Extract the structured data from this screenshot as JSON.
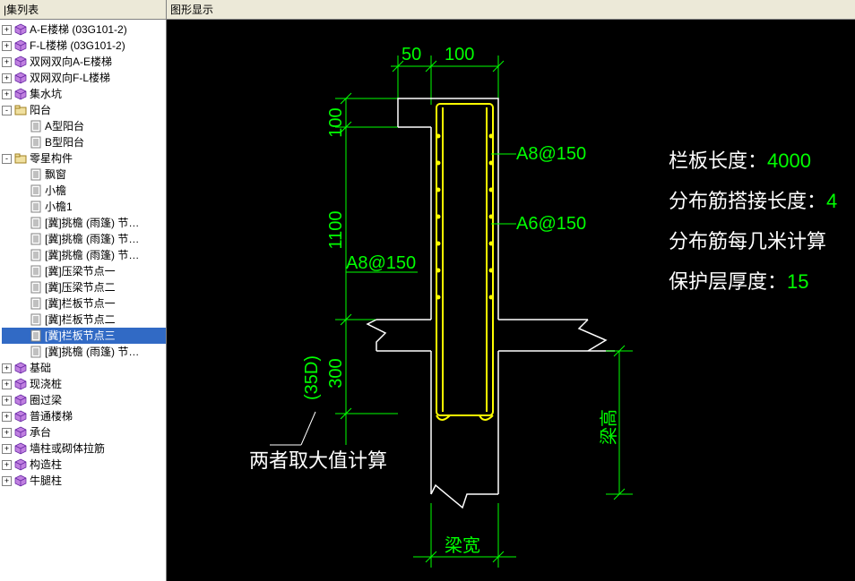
{
  "sidebar": {
    "title": "|集列表",
    "items": [
      {
        "level": 0,
        "exp": "+",
        "icon": "cube",
        "label": "A-E楼梯 (03G101-2)"
      },
      {
        "level": 0,
        "exp": "+",
        "icon": "cube",
        "label": "F-L楼梯 (03G101-2)"
      },
      {
        "level": 0,
        "exp": "+",
        "icon": "cube",
        "label": "双网双向A-E楼梯"
      },
      {
        "level": 0,
        "exp": "+",
        "icon": "cube",
        "label": "双网双向F-L楼梯"
      },
      {
        "level": 0,
        "exp": "+",
        "icon": "cube",
        "label": "集水坑"
      },
      {
        "level": 0,
        "exp": "-",
        "icon": "folder",
        "label": "阳台"
      },
      {
        "level": 1,
        "exp": " ",
        "icon": "doc",
        "label": "A型阳台"
      },
      {
        "level": 1,
        "exp": " ",
        "icon": "doc",
        "label": "B型阳台"
      },
      {
        "level": 0,
        "exp": "-",
        "icon": "folder",
        "label": "零星构件"
      },
      {
        "level": 1,
        "exp": " ",
        "icon": "doc",
        "label": "飘窗"
      },
      {
        "level": 1,
        "exp": " ",
        "icon": "doc",
        "label": "小檐"
      },
      {
        "level": 1,
        "exp": " ",
        "icon": "doc",
        "label": "小檐1"
      },
      {
        "level": 1,
        "exp": " ",
        "icon": "doc",
        "label": "[冀]挑檐 (雨篷) 节…"
      },
      {
        "level": 1,
        "exp": " ",
        "icon": "doc",
        "label": "[冀]挑檐 (雨篷) 节…"
      },
      {
        "level": 1,
        "exp": " ",
        "icon": "doc",
        "label": "[冀]挑檐 (雨篷) 节…"
      },
      {
        "level": 1,
        "exp": " ",
        "icon": "doc",
        "label": "[冀]压梁节点一"
      },
      {
        "level": 1,
        "exp": " ",
        "icon": "doc",
        "label": "[冀]压梁节点二"
      },
      {
        "level": 1,
        "exp": " ",
        "icon": "doc",
        "label": "[冀]栏板节点一"
      },
      {
        "level": 1,
        "exp": " ",
        "icon": "doc",
        "label": "[冀]栏板节点二"
      },
      {
        "level": 1,
        "exp": " ",
        "icon": "doc",
        "label": "[冀]栏板节点三",
        "selected": true
      },
      {
        "level": 1,
        "exp": " ",
        "icon": "doc",
        "label": "[冀]挑檐 (雨篷) 节…"
      },
      {
        "level": 0,
        "exp": "+",
        "icon": "cube",
        "label": "基础"
      },
      {
        "level": 0,
        "exp": "+",
        "icon": "cube",
        "label": "现浇桩"
      },
      {
        "level": 0,
        "exp": "+",
        "icon": "cube",
        "label": "圈过梁"
      },
      {
        "level": 0,
        "exp": "+",
        "icon": "cube",
        "label": "普通楼梯"
      },
      {
        "level": 0,
        "exp": "+",
        "icon": "cube",
        "label": "承台"
      },
      {
        "level": 0,
        "exp": "+",
        "icon": "cube",
        "label": "墙柱或砌体拉筋"
      },
      {
        "level": 0,
        "exp": "+",
        "icon": "cube",
        "label": "构造柱"
      },
      {
        "level": 0,
        "exp": "+",
        "icon": "cube",
        "label": "牛腿柱"
      }
    ]
  },
  "main": {
    "title": "图形显示"
  },
  "drawing": {
    "dims": {
      "top_50": "50",
      "top_100": "100",
      "h_100": "100",
      "h_1100": "1100",
      "h_300": "300",
      "h_35d": "(35D)",
      "rebar_a8_150_left": "A8@150",
      "rebar_a8_150_right": "A8@150",
      "rebar_a6_150": "A6@150",
      "beam_height": "梁高",
      "beam_width": "梁宽",
      "note": "两者取大值计算"
    },
    "params": [
      {
        "label": "栏板长度：",
        "value": "4000"
      },
      {
        "label": "分布筋搭接长度：",
        "value": "4"
      },
      {
        "label": "分布筋每几米计算",
        "value": ""
      },
      {
        "label": "保护层厚度：",
        "value": "15"
      }
    ],
    "colors": {
      "bg": "#000000",
      "dim": "#00ff00",
      "rebar": "#ffff00",
      "outline": "#ffffff",
      "text": "#ffffff"
    }
  }
}
